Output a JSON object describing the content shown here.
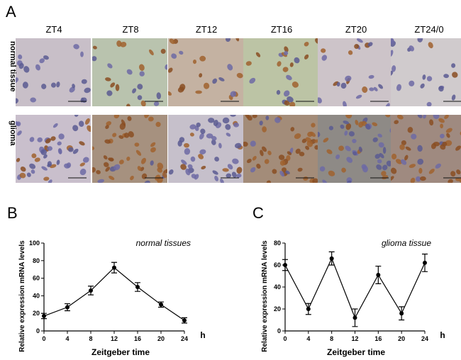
{
  "panels": {
    "a": "A",
    "b": "B",
    "c": "C"
  },
  "micrographs": {
    "columns": [
      "ZT4",
      "ZT8",
      "ZT12",
      "ZT16",
      "ZT20",
      "ZT24/0"
    ],
    "rows": [
      {
        "label": "normal tissue",
        "tints": [
          "#c8bfc8",
          "#b9c3ae",
          "#c4b2a2",
          "#bcc4a5",
          "#cdc4c9",
          "#d0cbcd"
        ],
        "stain": [
          0.15,
          0.45,
          0.8,
          0.55,
          0.25,
          0.05
        ]
      },
      {
        "label": "glioma",
        "tints": [
          "#c9bfcc",
          "#a6917f",
          "#c6c0cb",
          "#a38c79",
          "#8e8a86",
          "#9f8a80"
        ],
        "stain": [
          0.4,
          0.85,
          0.15,
          0.75,
          0.3,
          0.7
        ]
      }
    ]
  },
  "chart_data": [
    {
      "type": "line",
      "panel": "B",
      "title": "",
      "annotation": "normal tissues",
      "xlabel": "Zeitgeber time",
      "xunit": "h",
      "ylabel": "Relative expression mRNA levels",
      "x": [
        0,
        4,
        8,
        12,
        16,
        20,
        24
      ],
      "values": [
        17,
        27,
        46,
        72,
        50,
        30,
        12
      ],
      "errors": [
        3,
        4,
        5,
        6,
        5,
        3,
        3
      ],
      "xlim": [
        0,
        24
      ],
      "ylim": [
        0,
        100
      ],
      "xticks": [
        0,
        4,
        8,
        12,
        16,
        20,
        24
      ],
      "yticks": [
        0,
        20,
        40,
        60,
        80,
        100
      ]
    },
    {
      "type": "line",
      "panel": "C",
      "title": "",
      "annotation": "glioma tissue",
      "xlabel": "Zeitgeber time",
      "xunit": "h",
      "ylabel": "Relative expression mRNA levels",
      "x": [
        0,
        4,
        8,
        12,
        16,
        20,
        24
      ],
      "values": [
        60,
        20,
        66,
        12,
        51,
        16,
        62
      ],
      "errors": [
        5,
        5,
        6,
        8,
        8,
        6,
        8
      ],
      "xlim": [
        0,
        24
      ],
      "ylim": [
        0,
        80
      ],
      "xticks": [
        0,
        4,
        8,
        12,
        16,
        20,
        24
      ],
      "yticks": [
        0,
        20,
        40,
        60,
        80
      ]
    }
  ]
}
